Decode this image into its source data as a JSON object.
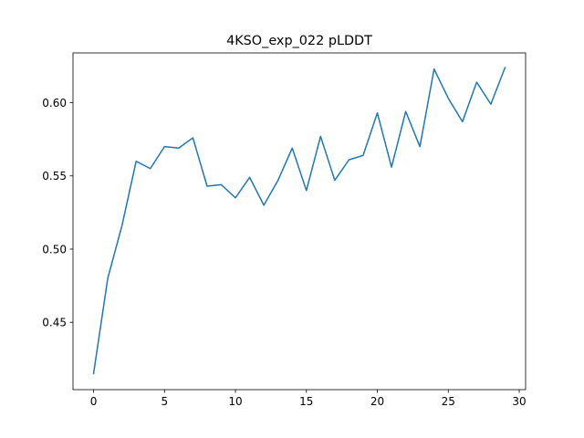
{
  "chart_data": {
    "type": "line",
    "title": "4KSO_exp_022 pLDDT",
    "xlabel": "",
    "ylabel": "",
    "xlim": [
      -1.45,
      30.45
    ],
    "ylim": [
      0.404,
      0.634
    ],
    "xticks": [
      0,
      5,
      10,
      15,
      20,
      25,
      30
    ],
    "yticks": [
      0.45,
      0.5,
      0.55,
      0.6
    ],
    "ytick_labels": [
      "0.45",
      "0.50",
      "0.55",
      "0.60"
    ],
    "grid": false,
    "series": [
      {
        "color": "#1f77b4",
        "x": [
          0,
          1,
          2,
          3,
          4,
          5,
          6,
          7,
          8,
          9,
          10,
          11,
          12,
          13,
          14,
          15,
          16,
          17,
          18,
          19,
          20,
          21,
          22,
          23,
          24,
          25,
          26,
          27,
          28,
          29
        ],
        "y": [
          0.415,
          0.48,
          0.516,
          0.56,
          0.555,
          0.57,
          0.569,
          0.576,
          0.543,
          0.544,
          0.535,
          0.549,
          0.53,
          0.547,
          0.569,
          0.54,
          0.577,
          0.547,
          0.561,
          0.564,
          0.593,
          0.556,
          0.594,
          0.57,
          0.623,
          0.603,
          0.587,
          0.614,
          0.599,
          0.624
        ]
      }
    ]
  }
}
